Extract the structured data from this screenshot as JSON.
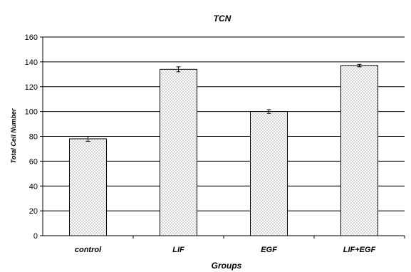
{
  "chart_data": {
    "type": "bar",
    "title": "TCN",
    "xlabel": "Groups",
    "ylabel": "Total Cell Number",
    "categories": [
      "control",
      "LIF",
      "EGF",
      "LIF+EGF"
    ],
    "values": [
      78,
      134,
      100,
      137
    ],
    "error": [
      2,
      2,
      1.5,
      1
    ],
    "ylim": [
      0,
      160
    ],
    "yticks": [
      0,
      20,
      40,
      60,
      80,
      100,
      120,
      140,
      160
    ],
    "grid": true,
    "legend": "none",
    "bar_fill": "dotted"
  }
}
